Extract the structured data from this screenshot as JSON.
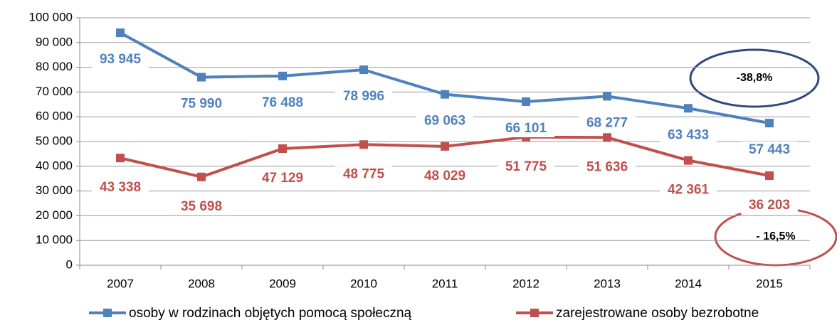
{
  "chart_data": {
    "type": "line",
    "categories": [
      "2007",
      "2008",
      "2009",
      "2010",
      "2011",
      "2012",
      "2013",
      "2014",
      "2015"
    ],
    "series": [
      {
        "name": "osoby w rodzinach objętych pomocą społeczną",
        "color": "#4f81bd",
        "values": [
          93945,
          75990,
          76488,
          78996,
          69063,
          66101,
          68277,
          63433,
          57443
        ],
        "value_labels": [
          "93 945",
          "75 990",
          "76 488",
          "78 996",
          "69 063",
          "66 101",
          "68 277",
          "63 433",
          "57 443"
        ]
      },
      {
        "name": "zarejestrowane osoby bezrobotne",
        "color": "#c0504d",
        "values": [
          43338,
          35698,
          47129,
          48775,
          48029,
          51775,
          51636,
          42361,
          36203
        ],
        "value_labels": [
          "43 338",
          "35 698",
          "47 129",
          "48 775",
          "48 029",
          "51 775",
          "51 636",
          "42 361",
          "36 203"
        ]
      }
    ],
    "ylim": [
      0,
      100000
    ],
    "yticks": [
      0,
      {
        "value": 10000,
        "label": "10 000"
      },
      {
        "value": 20000,
        "label": "20 000"
      },
      {
        "value": 30000,
        "label": "30 000"
      },
      {
        "value": 40000,
        "label": "40 000"
      },
      {
        "value": 50000,
        "label": "50 000"
      },
      {
        "value": 60000,
        "label": "60 000"
      },
      {
        "value": 70000,
        "label": "70 000"
      },
      {
        "value": 80000,
        "label": "80 000"
      },
      {
        "value": 90000,
        "label": "90 000"
      },
      {
        "value": 100000,
        "label": "100 000"
      }
    ],
    "grid": true,
    "annotations": [
      "-38,8%",
      "- 16,5%"
    ]
  }
}
